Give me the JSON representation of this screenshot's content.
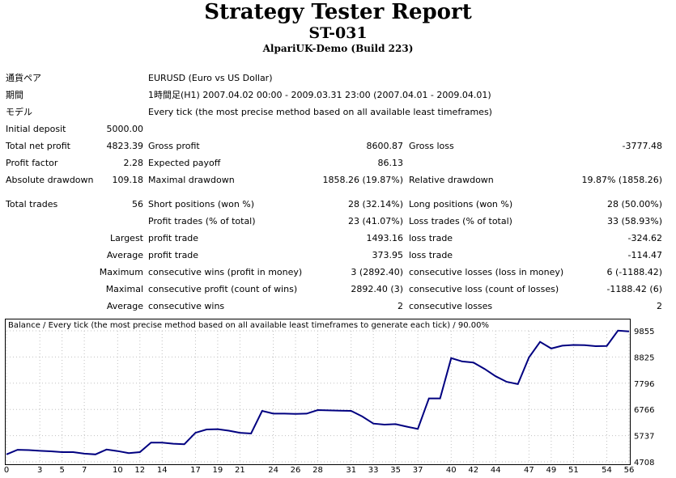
{
  "header": {
    "title": "Strategy Tester Report",
    "name": "ST-031",
    "server": "AlpariUK-Demo (Build 223)"
  },
  "info": {
    "symbol_label": "通貨ペア",
    "symbol_value": "EURUSD (Euro vs US Dollar)",
    "period_label": "期間",
    "period_value": "1時間足(H1) 2007.04.02 00:00 - 2009.03.31 23:00 (2007.04.01 - 2009.04.01)",
    "model_label": "モデル",
    "model_value": "Every tick (the most precise method based on all available least timeframes)"
  },
  "stats": {
    "initial_deposit_label": "Initial deposit",
    "initial_deposit": "5000.00",
    "total_net_profit_label": "Total net profit",
    "total_net_profit": "4823.39",
    "gross_profit_label": "Gross profit",
    "gross_profit": "8600.87",
    "gross_loss_label": "Gross loss",
    "gross_loss": "-3777.48",
    "profit_factor_label": "Profit factor",
    "profit_factor": "2.28",
    "expected_payoff_label": "Expected payoff",
    "expected_payoff": "86.13",
    "absolute_drawdown_label": "Absolute drawdown",
    "absolute_drawdown": "109.18",
    "maximal_drawdown_label": "Maximal drawdown",
    "maximal_drawdown": "1858.26 (19.87%)",
    "relative_drawdown_label": "Relative drawdown",
    "relative_drawdown": "19.87% (1858.26)",
    "total_trades_label": "Total trades",
    "total_trades": "56",
    "short_positions_label": "Short positions (won %)",
    "short_positions": "28 (32.14%)",
    "long_positions_label": "Long positions (won %)",
    "long_positions": "28 (50.00%)",
    "profit_trades_label": "Profit trades (% of total)",
    "profit_trades": "23 (41.07%)",
    "loss_trades_label": "Loss trades (% of total)",
    "loss_trades": "33 (58.93%)",
    "largest_label": "Largest",
    "largest_profit_label": "profit trade",
    "largest_profit": "1493.16",
    "largest_loss_label": "loss trade",
    "largest_loss": "-324.62",
    "average_label": "Average",
    "average_profit_label": "profit trade",
    "average_profit": "373.95",
    "average_loss_label": "loss trade",
    "average_loss": "-114.47",
    "maximum_label": "Maximum",
    "max_cons_wins_label": "consecutive wins (profit in money)",
    "max_cons_wins": "3 (2892.40)",
    "max_cons_losses_label": "consecutive losses (loss in money)",
    "max_cons_losses": "6 (-1188.42)",
    "maximal_label": "Maximal",
    "maximal_cons_profit_label": "consecutive profit (count of wins)",
    "maximal_cons_profit": "2892.40 (3)",
    "maximal_cons_loss_label": "consecutive loss (count of losses)",
    "maximal_cons_loss": "-1188.42 (6)",
    "average2_label": "Average",
    "avg_cons_wins_label": "consecutive wins",
    "avg_cons_wins": "2",
    "avg_cons_losses_label": "consecutive losses",
    "avg_cons_losses": "2"
  },
  "chart_caption": "Balance / Every tick (the most precise method based on all available least timeframes to generate each tick) / 90.00%",
  "chart_data": {
    "type": "line",
    "title": "Balance / Every tick (the most precise method based on all available least timeframes to generate each tick) / 90.00%",
    "x_ticks": [
      0,
      3,
      5,
      7,
      10,
      12,
      14,
      17,
      19,
      21,
      24,
      26,
      28,
      31,
      33,
      35,
      37,
      40,
      42,
      44,
      47,
      49,
      51,
      54,
      56
    ],
    "y_ticks": [
      4708,
      5737,
      6766,
      7796,
      8825,
      9855
    ],
    "ylim": [
      4708,
      9855
    ],
    "xlim": [
      0,
      56
    ],
    "line_color": "#000080",
    "x": [
      0,
      1,
      2,
      3,
      4,
      5,
      6,
      7,
      8,
      9,
      10,
      11,
      12,
      13,
      14,
      15,
      16,
      17,
      18,
      19,
      20,
      21,
      22,
      23,
      24,
      25,
      26,
      27,
      28,
      29,
      30,
      31,
      32,
      33,
      34,
      35,
      36,
      37,
      38,
      39,
      40,
      41,
      42,
      43,
      44,
      45,
      46,
      47,
      48,
      49,
      50,
      51,
      52,
      53,
      54,
      55,
      56
    ],
    "y": [
      5000,
      5180,
      5170,
      5140,
      5120,
      5090,
      5090,
      5030,
      5000,
      5190,
      5130,
      5050,
      5090,
      5460,
      5460,
      5420,
      5400,
      5850,
      5980,
      5990,
      5930,
      5850,
      5820,
      6710,
      6600,
      6600,
      6590,
      6600,
      6740,
      6730,
      6720,
      6710,
      6490,
      6210,
      6170,
      6190,
      6090,
      6000,
      7200,
      7200,
      8780,
      8650,
      8610,
      8360,
      8070,
      7850,
      7760,
      8810,
      9420,
      9160,
      9270,
      9300,
      9290,
      9250,
      9260,
      9860,
      9830
    ]
  }
}
